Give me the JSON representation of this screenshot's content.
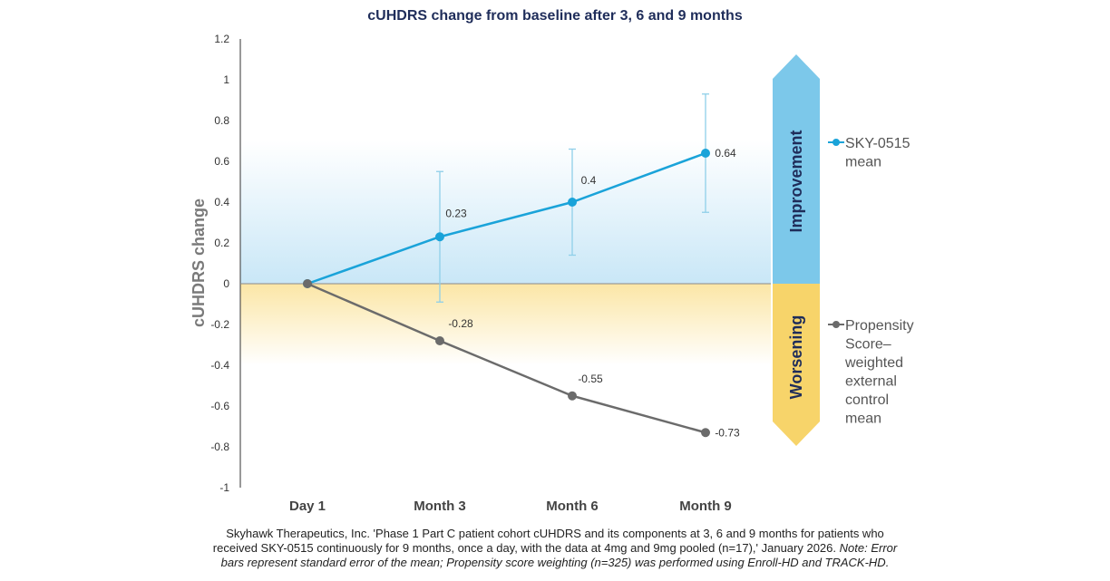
{
  "chart_data": {
    "type": "line",
    "title": "cUHDRS change from baseline after 3, 6 and 9 months",
    "ylabel": "cUHDRS change",
    "xlabel": "",
    "categories": [
      "Day 1",
      "Month 3",
      "Month 6",
      "Month 9"
    ],
    "ylim": [
      -1,
      1.2
    ],
    "yticks": [
      1.2,
      1,
      0.8,
      0.6,
      0.4,
      0.2,
      0,
      -0.2,
      -0.4,
      -0.6,
      -0.8,
      -1
    ],
    "ytick_labels": [
      "1.2",
      "1",
      "0.8",
      "0.6",
      "0.4",
      "0.2",
      "0",
      "-0.2",
      "-0.4",
      "-0.6",
      "-0.8",
      "-1"
    ],
    "series": [
      {
        "name": "SKY-0515 mean",
        "legend_lines": [
          "SKY-0515",
          "mean"
        ],
        "color": "#1aa3d9",
        "values": [
          0,
          0.23,
          0.4,
          0.64
        ],
        "data_labels": [
          "",
          "0.23",
          "0.4",
          "0.64"
        ],
        "error_low": [
          null,
          -0.09,
          0.14,
          0.35
        ],
        "error_high": [
          null,
          0.55,
          0.66,
          0.93
        ]
      },
      {
        "name": "Propensity Score–weighted external control mean",
        "legend_lines": [
          "Propensity",
          "Score–",
          "weighted",
          "external",
          "control",
          "mean"
        ],
        "color": "#6b6b6b",
        "values": [
          0,
          -0.28,
          -0.55,
          -0.73
        ],
        "data_labels": [
          "",
          "-0.28",
          "-0.55",
          "-0.73"
        ]
      }
    ],
    "bands": {
      "improvement_label": "Improvement",
      "worsening_label": "Worsening",
      "improvement_color": "#7cc8ea",
      "worsening_color": "#f7d46a"
    },
    "legend_position": "right",
    "grid": false
  },
  "caption": {
    "line1": "Skyhawk Therapeutics, Inc. 'Phase 1 Part C patient cohort cUHDRS and its components at 3, 6 and 9 months for patients who",
    "line2_plain": "received SKY-0515 continuously for 9 months, once a day, with the data at 4mg and 9mg pooled (n=17),' January 2026.",
    "line2_italic": "Note: Error",
    "line3_italic": "bars represent standard error of the mean; Propensity score weighting (n=325) was performed using Enroll-HD and TRACK-HD."
  }
}
